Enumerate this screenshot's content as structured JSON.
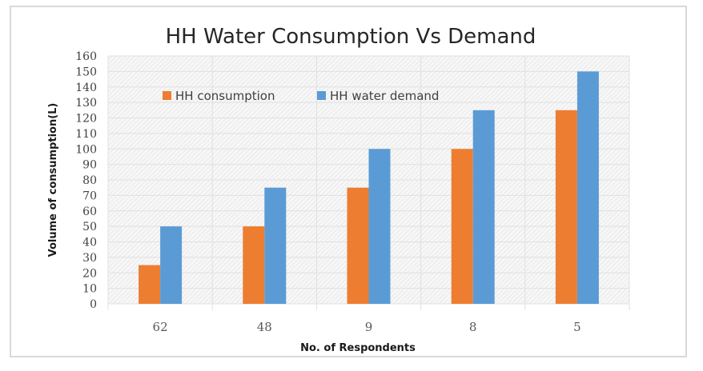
{
  "chart_data": {
    "type": "bar",
    "title": "HH Water Consumption Vs Demand",
    "xlabel": "No. of Respondents",
    "ylabel": "Volume of consumption(L)",
    "categories": [
      "62",
      "48",
      "9",
      "8",
      "5"
    ],
    "series": [
      {
        "name": "HH consumption",
        "color": "#ed7d31",
        "values": [
          25,
          50,
          75,
          100,
          125
        ]
      },
      {
        "name": "HH water  demand",
        "color": "#5b9bd5",
        "values": [
          50,
          75,
          100,
          125,
          150
        ]
      }
    ],
    "ylim": [
      0,
      160
    ],
    "yticks": [
      0,
      10,
      20,
      30,
      40,
      50,
      60,
      70,
      80,
      90,
      100,
      110,
      120,
      130,
      140,
      150,
      160
    ],
    "grid": true,
    "legend": "top-inside"
  }
}
